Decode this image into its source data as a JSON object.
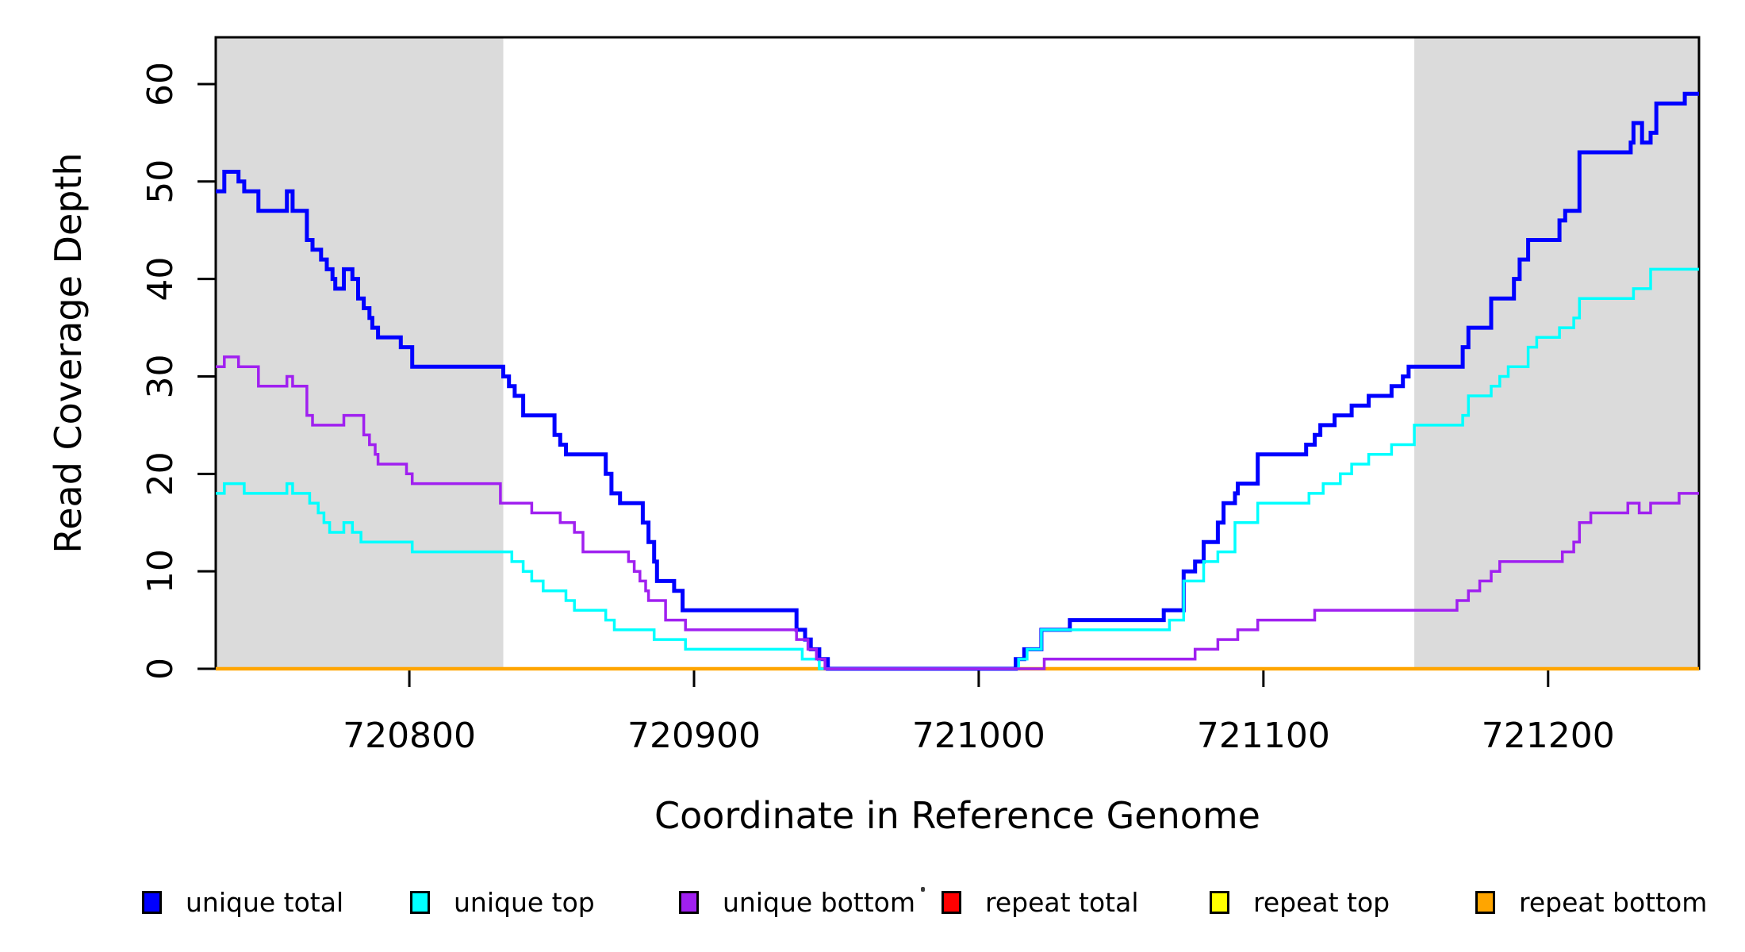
{
  "chart_data": {
    "type": "line",
    "step_style": "step-after",
    "title": "",
    "xlabel": "Coordinate in Reference Genome",
    "ylabel": "Read Coverage Depth",
    "xlim": [
      720732,
      721253
    ],
    "ylim": [
      0,
      64.8
    ],
    "grid": false,
    "x_ticks": {
      "values": [
        720800,
        720900,
        721000,
        721100,
        721200
      ],
      "labels": [
        "720800",
        "720900",
        "721000",
        "721100",
        "721200"
      ]
    },
    "y_ticks": {
      "values": [
        0,
        10,
        20,
        30,
        40,
        50,
        60
      ],
      "labels": [
        "0",
        "10",
        "20",
        "30",
        "40",
        "50",
        "60"
      ]
    },
    "shaded_regions": {
      "color": "#DBDBDB",
      "x_ranges": [
        [
          720732,
          720833
        ],
        [
          721153,
          721253
        ]
      ]
    },
    "legend": {
      "position": "bottom"
    },
    "draw_order": [
      3,
      4,
      5,
      0,
      1,
      2
    ],
    "series": [
      {
        "key": "unique-total",
        "label": "unique total",
        "color": "#0000FF",
        "line_width": 5,
        "points": [
          [
            720732,
            49
          ],
          [
            720735,
            51
          ],
          [
            720740,
            50
          ],
          [
            720742,
            49
          ],
          [
            720747,
            47
          ],
          [
            720757,
            49
          ],
          [
            720759,
            47
          ],
          [
            720764,
            44
          ],
          [
            720766,
            43
          ],
          [
            720769,
            42
          ],
          [
            720771,
            41
          ],
          [
            720773,
            40
          ],
          [
            720774,
            39
          ],
          [
            720777,
            41
          ],
          [
            720780,
            40
          ],
          [
            720782,
            38
          ],
          [
            720784,
            37
          ],
          [
            720786,
            36
          ],
          [
            720787,
            35
          ],
          [
            720789,
            34
          ],
          [
            720797,
            33
          ],
          [
            720801,
            31
          ],
          [
            720833,
            30
          ],
          [
            720835,
            29
          ],
          [
            720837,
            28
          ],
          [
            720840,
            26
          ],
          [
            720851,
            24
          ],
          [
            720853,
            23
          ],
          [
            720855,
            22
          ],
          [
            720869,
            20
          ],
          [
            720871,
            18
          ],
          [
            720874,
            17
          ],
          [
            720882,
            15
          ],
          [
            720884,
            13
          ],
          [
            720886,
            11
          ],
          [
            720887,
            9
          ],
          [
            720893,
            8
          ],
          [
            720896,
            6
          ],
          [
            720936,
            4
          ],
          [
            720939,
            3
          ],
          [
            720941,
            2
          ],
          [
            720944,
            1
          ],
          [
            720947,
            0
          ],
          [
            721013,
            1
          ],
          [
            721016,
            2
          ],
          [
            721022,
            4
          ],
          [
            721032,
            5
          ],
          [
            721065,
            6
          ],
          [
            721072,
            10
          ],
          [
            721076,
            11
          ],
          [
            721079,
            13
          ],
          [
            721084,
            15
          ],
          [
            721086,
            17
          ],
          [
            721090,
            18
          ],
          [
            721091,
            19
          ],
          [
            721098,
            22
          ],
          [
            721115,
            23
          ],
          [
            721118,
            24
          ],
          [
            721120,
            25
          ],
          [
            721125,
            26
          ],
          [
            721131,
            27
          ],
          [
            721137,
            28
          ],
          [
            721145,
            29
          ],
          [
            721149,
            30
          ],
          [
            721151,
            31
          ],
          [
            721170,
            33
          ],
          [
            721172,
            35
          ],
          [
            721180,
            38
          ],
          [
            721188,
            40
          ],
          [
            721190,
            42
          ],
          [
            721193,
            44
          ],
          [
            721204,
            46
          ],
          [
            721206,
            47
          ],
          [
            721211,
            53
          ],
          [
            721229,
            54
          ],
          [
            721230,
            56
          ],
          [
            721233,
            54
          ],
          [
            721236,
            55
          ],
          [
            721238,
            58
          ],
          [
            721248,
            59
          ]
        ]
      },
      {
        "key": "unique-top",
        "label": "unique top",
        "color": "#00FFFF",
        "line_width": 3.5,
        "points": [
          [
            720732,
            18
          ],
          [
            720735,
            19
          ],
          [
            720742,
            18
          ],
          [
            720757,
            19
          ],
          [
            720759,
            18
          ],
          [
            720765,
            17
          ],
          [
            720768,
            16
          ],
          [
            720770,
            15
          ],
          [
            720772,
            14
          ],
          [
            720777,
            15
          ],
          [
            720780,
            14
          ],
          [
            720783,
            13
          ],
          [
            720801,
            12
          ],
          [
            720836,
            11
          ],
          [
            720840,
            10
          ],
          [
            720843,
            9
          ],
          [
            720847,
            8
          ],
          [
            720855,
            7
          ],
          [
            720858,
            6
          ],
          [
            720869,
            5
          ],
          [
            720872,
            4
          ],
          [
            720886,
            3
          ],
          [
            720897,
            2
          ],
          [
            720938,
            1
          ],
          [
            720944,
            0
          ],
          [
            721014,
            1
          ],
          [
            721017,
            2
          ],
          [
            721022,
            4
          ],
          [
            721067,
            5
          ],
          [
            721072,
            9
          ],
          [
            721079,
            11
          ],
          [
            721084,
            12
          ],
          [
            721090,
            15
          ],
          [
            721098,
            17
          ],
          [
            721116,
            18
          ],
          [
            721121,
            19
          ],
          [
            721127,
            20
          ],
          [
            721131,
            21
          ],
          [
            721137,
            22
          ],
          [
            721145,
            23
          ],
          [
            721153,
            25
          ],
          [
            721170,
            26
          ],
          [
            721172,
            28
          ],
          [
            721180,
            29
          ],
          [
            721183,
            30
          ],
          [
            721186,
            31
          ],
          [
            721193,
            33
          ],
          [
            721196,
            34
          ],
          [
            721204,
            35
          ],
          [
            721209,
            36
          ],
          [
            721211,
            38
          ],
          [
            721230,
            39
          ],
          [
            721236,
            41
          ]
        ]
      },
      {
        "key": "unique-bottom",
        "label": "unique bottom",
        "color": "#A020F0",
        "line_width": 3.5,
        "points": [
          [
            720732,
            31
          ],
          [
            720735,
            32
          ],
          [
            720740,
            31
          ],
          [
            720747,
            29
          ],
          [
            720757,
            30
          ],
          [
            720759,
            29
          ],
          [
            720764,
            26
          ],
          [
            720766,
            25
          ],
          [
            720777,
            26
          ],
          [
            720784,
            24
          ],
          [
            720786,
            23
          ],
          [
            720788,
            22
          ],
          [
            720789,
            21
          ],
          [
            720799,
            20
          ],
          [
            720801,
            19
          ],
          [
            720832,
            17
          ],
          [
            720843,
            16
          ],
          [
            720853,
            15
          ],
          [
            720858,
            14
          ],
          [
            720861,
            12
          ],
          [
            720877,
            11
          ],
          [
            720879,
            10
          ],
          [
            720881,
            9
          ],
          [
            720883,
            8
          ],
          [
            720884,
            7
          ],
          [
            720890,
            5
          ],
          [
            720897,
            4
          ],
          [
            720936,
            3
          ],
          [
            720940,
            2
          ],
          [
            720943,
            1
          ],
          [
            720946,
            0
          ],
          [
            721023,
            1
          ],
          [
            721076,
            2
          ],
          [
            721084,
            3
          ],
          [
            721091,
            4
          ],
          [
            721098,
            5
          ],
          [
            721118,
            6
          ],
          [
            721168,
            7
          ],
          [
            721172,
            8
          ],
          [
            721176,
            9
          ],
          [
            721180,
            10
          ],
          [
            721183,
            11
          ],
          [
            721205,
            12
          ],
          [
            721209,
            13
          ],
          [
            721211,
            15
          ],
          [
            721215,
            16
          ],
          [
            721228,
            17
          ],
          [
            721232,
            16
          ],
          [
            721236,
            17
          ],
          [
            721246,
            18
          ]
        ]
      },
      {
        "key": "repeat-total",
        "label": "repeat total",
        "color": "#FF0000",
        "line_width": 4,
        "points": [
          [
            720732,
            0
          ]
        ]
      },
      {
        "key": "repeat-top",
        "label": "repeat top",
        "color": "#FFFF00",
        "line_width": 4,
        "points": [
          [
            720732,
            0
          ]
        ]
      },
      {
        "key": "repeat-bottom",
        "label": "repeat bottom",
        "color": "#FFA500",
        "line_width": 4.5,
        "points": [
          [
            720732,
            0
          ]
        ]
      }
    ]
  }
}
